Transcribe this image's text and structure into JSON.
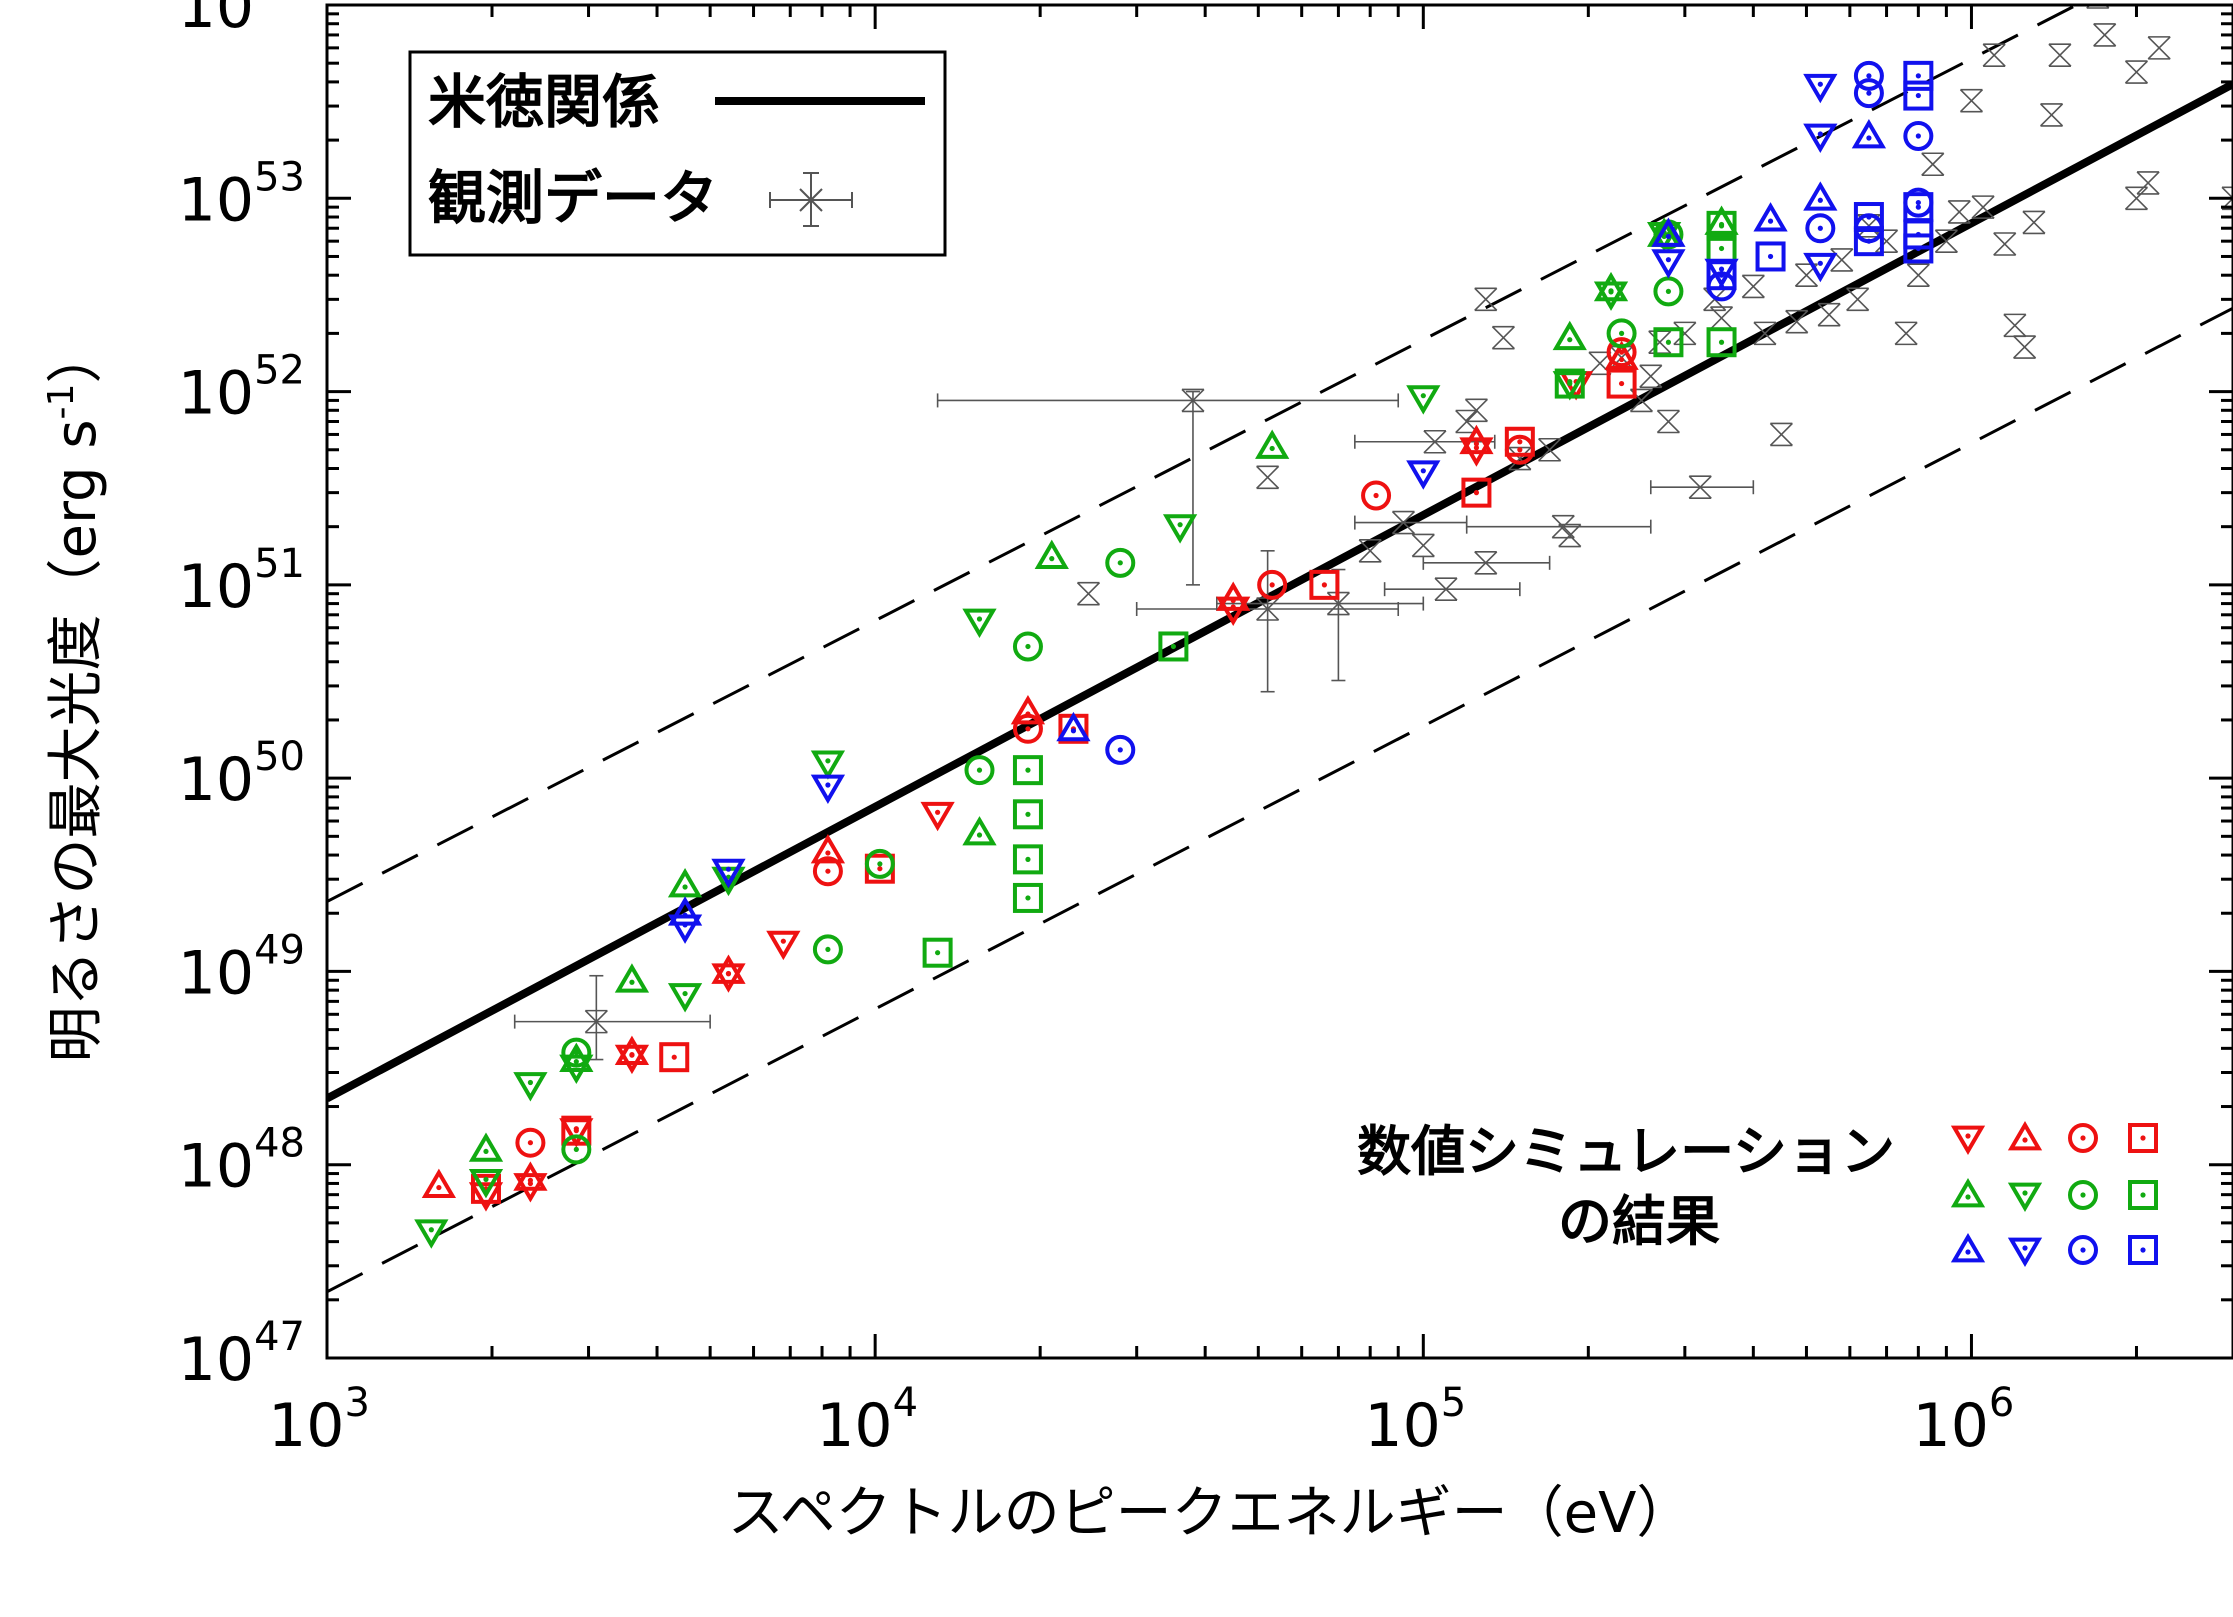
{
  "chart_data": {
    "type": "scatter",
    "x_scale": "log",
    "y_scale": "log",
    "xlim": [
      1000,
      3000000
    ],
    "ylim": [
      1e+47,
      1e+54
    ],
    "x_ticks": [
      {
        "value": 1000,
        "base": "10",
        "exp": "3"
      },
      {
        "value": 10000,
        "base": "10",
        "exp": "4"
      },
      {
        "value": 100000,
        "base": "10",
        "exp": "5"
      },
      {
        "value": 1000000,
        "base": "10",
        "exp": "6"
      }
    ],
    "y_ticks": [
      {
        "value": 1e+47,
        "base": "10",
        "exp": "47"
      },
      {
        "value": 1e+48,
        "base": "10",
        "exp": "48"
      },
      {
        "value": 1e+49,
        "base": "10",
        "exp": "49"
      },
      {
        "value": 1e+50,
        "base": "10",
        "exp": "50"
      },
      {
        "value": 1e+51,
        "base": "10",
        "exp": "51"
      },
      {
        "value": 1e+52,
        "base": "10",
        "exp": "52"
      },
      {
        "value": 1e+53,
        "base": "10",
        "exp": "53"
      },
      {
        "value": 1e+54,
        "base": "10",
        "exp": "54"
      }
    ],
    "xlabel": "スペクトルのピークエネルギー（eV）",
    "ylabel_main": "明るさの最大光度（erg s",
    "ylabel_sup": "-1",
    "ylabel_end": "）",
    "legend": {
      "relation_label": "米徳関係",
      "observed_label": "観測データ"
    },
    "sim_label_line1": "数値シミュレーション",
    "sim_label_line2": "の結果",
    "colors": {
      "red": "#ee1111",
      "green": "#11aa11",
      "blue": "#1111ee",
      "black": "#000000",
      "gray": "#555555"
    },
    "yonetoku_relation": {
      "points": [
        [
          1000,
          2.2e+48
        ],
        [
          3000000,
          3.9e+53
        ]
      ],
      "style": "solid"
    },
    "scatter_bands": [
      {
        "points": [
          [
            1000,
            2.3e+49
          ],
          [
            3000000,
            2.6e+54
          ]
        ],
        "style": "dashed"
      },
      {
        "points": [
          [
            1000,
            2.2e+47
          ],
          [
            3000000,
            2.7e+52
          ]
        ],
        "style": "dashed"
      }
    ],
    "sim_marker_grid": [
      [
        "tri-down-red",
        "tri-up-red",
        "circle-red",
        "square-red"
      ],
      [
        "tri-up-green",
        "tri-down-green",
        "circle-green",
        "square-green"
      ],
      [
        "tri-up-blue",
        "tri-down-blue",
        "circle-blue",
        "square-blue"
      ]
    ],
    "observed": [
      {
        "x": 3100,
        "y": 5.5e+48,
        "xerr": [
          2200,
          5000
        ],
        "yerr": [
          3.5e+48,
          9.5e+48
        ]
      },
      {
        "x": 24500,
        "y": 9e+50
      },
      {
        "x": 38000,
        "y": 9e+51,
        "xerr": [
          13000,
          90000
        ],
        "yerr": [
          1e+51,
          1e+52
        ]
      },
      {
        "x": 52000,
        "y": 3.6e+51
      },
      {
        "x": 52000,
        "y": 7.5e+50,
        "xerr": [
          30000,
          90000
        ],
        "yerr": [
          2.8e+50,
          1.5e+51
        ]
      },
      {
        "x": 70000,
        "y": 8e+50,
        "xerr": [
          42000,
          100000
        ],
        "yerr": [
          3.2e+50,
          1.2e+51
        ]
      },
      {
        "x": 80000,
        "y": 1.5e+51
      },
      {
        "x": 92000,
        "y": 2.1e+51,
        "xerr": [
          75000,
          120000
        ]
      },
      {
        "x": 100000,
        "y": 1.6e+51
      },
      {
        "x": 105000,
        "y": 5.5e+51,
        "xerr": [
          75000,
          135000
        ]
      },
      {
        "x": 110000,
        "y": 9.5e+50,
        "xerr": [
          85000,
          150000
        ]
      },
      {
        "x": 120000,
        "y": 7e+51
      },
      {
        "x": 125000,
        "y": 8e+51
      },
      {
        "x": 130000,
        "y": 3e+52
      },
      {
        "x": 130000,
        "y": 1.3e+51,
        "xerr": [
          100000,
          170000
        ]
      },
      {
        "x": 140000,
        "y": 1.9e+52
      },
      {
        "x": 150000,
        "y": 4.5e+51
      },
      {
        "x": 170000,
        "y": 5e+51
      },
      {
        "x": 180000,
        "y": 2e+51,
        "xerr": [
          120000,
          260000
        ]
      },
      {
        "x": 185000,
        "y": 1.8e+51
      },
      {
        "x": 210000,
        "y": 1.4e+52
      },
      {
        "x": 230000,
        "y": 1.5e+52
      },
      {
        "x": 250000,
        "y": 9e+51
      },
      {
        "x": 260000,
        "y": 1.2e+52
      },
      {
        "x": 270000,
        "y": 1.8e+52
      },
      {
        "x": 280000,
        "y": 7e+51
      },
      {
        "x": 300000,
        "y": 2e+52
      },
      {
        "x": 320000,
        "y": 3.2e+51,
        "xerr": [
          260000,
          400000
        ]
      },
      {
        "x": 340000,
        "y": 3e+52
      },
      {
        "x": 350000,
        "y": 2.4e+52
      },
      {
        "x": 400000,
        "y": 3.5e+52
      },
      {
        "x": 420000,
        "y": 2e+52
      },
      {
        "x": 450000,
        "y": 6e+51
      },
      {
        "x": 480000,
        "y": 2.3e+52
      },
      {
        "x": 500000,
        "y": 4e+52
      },
      {
        "x": 550000,
        "y": 2.5e+52
      },
      {
        "x": 580000,
        "y": 4.8e+52
      },
      {
        "x": 620000,
        "y": 3e+52
      },
      {
        "x": 650000,
        "y": 7.2e+52
      },
      {
        "x": 700000,
        "y": 6e+52
      },
      {
        "x": 760000,
        "y": 2e+52
      },
      {
        "x": 800000,
        "y": 4e+52
      },
      {
        "x": 850000,
        "y": 1.5e+53
      },
      {
        "x": 900000,
        "y": 6e+52
      },
      {
        "x": 950000,
        "y": 8.5e+52
      },
      {
        "x": 1000000,
        "y": 3.2e+53
      },
      {
        "x": 1050000,
        "y": 9e+52
      },
      {
        "x": 1100000,
        "y": 5.5e+53
      },
      {
        "x": 1150000,
        "y": 5.8e+52
      },
      {
        "x": 1200000,
        "y": 2.2e+52
      },
      {
        "x": 1250000,
        "y": 1.7e+52
      },
      {
        "x": 1300000,
        "y": 7.5e+52
      },
      {
        "x": 1400000,
        "y": 2.7e+53
      },
      {
        "x": 1450000,
        "y": 5.5e+53
      },
      {
        "x": 1700000,
        "y": 1.1e+54
      },
      {
        "x": 1750000,
        "y": 7e+53
      },
      {
        "x": 2000000,
        "y": 4.5e+53
      },
      {
        "x": 2000000,
        "y": 1e+53
      },
      {
        "x": 2100000,
        "y": 1.2e+53
      },
      {
        "x": 2200000,
        "y": 6e+53
      },
      {
        "x": 3000000,
        "y": 1e+53
      }
    ],
    "simulations": [
      {
        "shape": "tri-down",
        "color": "red",
        "points": [
          [
            1950,
            7e+47
          ],
          [
            2350,
            7.8e+47
          ],
          [
            2850,
            1.5e+48
          ],
          [
            3600,
            3.6e+48
          ],
          [
            5400,
            9.5e+48
          ],
          [
            6800,
            1.4e+49
          ],
          [
            13000,
            6.5e+49
          ],
          [
            45000,
            7.5e+50
          ],
          [
            125000,
            5e+51
          ],
          [
            190000,
            1.1e+52
          ]
        ]
      },
      {
        "shape": "tri-up",
        "color": "red",
        "points": [
          [
            1600,
            7.8e+47
          ],
          [
            2350,
            8.5e+47
          ],
          [
            3600,
            3.8e+48
          ],
          [
            5400,
            1e+49
          ],
          [
            8200,
            4.2e+49
          ],
          [
            19000,
            2.2e+50
          ],
          [
            45000,
            8.5e+50
          ],
          [
            125000,
            5.5e+51
          ],
          [
            230000,
            1.5e+52
          ]
        ]
      },
      {
        "shape": "circle",
        "color": "red",
        "points": [
          [
            2350,
            1.3e+48
          ],
          [
            8200,
            3.3e+49
          ],
          [
            19000,
            1.8e+50
          ],
          [
            53000,
            1e+51
          ],
          [
            82000,
            2.9e+51
          ],
          [
            150000,
            5e+51
          ],
          [
            230000,
            1.6e+52
          ]
        ]
      },
      {
        "shape": "square",
        "color": "red",
        "points": [
          [
            1950,
            7.5e+47
          ],
          [
            2850,
            1.5e+48
          ],
          [
            4300,
            3.6e+48
          ],
          [
            10200,
            3.4e+49
          ],
          [
            23000,
            1.8e+50
          ],
          [
            66000,
            1e+51
          ],
          [
            125000,
            3e+51
          ],
          [
            150000,
            5.5e+51
          ],
          [
            230000,
            1.1e+52
          ]
        ]
      },
      {
        "shape": "tri-up",
        "color": "green",
        "points": [
          [
            1950,
            1.2e+48
          ],
          [
            2850,
            3.5e+48
          ],
          [
            3600,
            9e+48
          ],
          [
            4500,
            2.8e+49
          ],
          [
            15500,
            5.2e+49
          ],
          [
            21000,
            1.4e+51
          ],
          [
            53000,
            5.2e+51
          ],
          [
            185000,
            1.9e+52
          ],
          [
            220000,
            3.4e+52
          ],
          [
            275000,
            6.5e+52
          ],
          [
            350000,
            7.5e+52
          ]
        ]
      },
      {
        "shape": "tri-down",
        "color": "green",
        "points": [
          [
            1550,
            4.5e+47
          ],
          [
            1950,
            8.2e+47
          ],
          [
            2350,
            2.6e+48
          ],
          [
            2850,
            3.2e+48
          ],
          [
            4500,
            7.5e+48
          ],
          [
            5400,
            3e+49
          ],
          [
            8200,
            1.2e+50
          ],
          [
            15500,
            6.5e+50
          ],
          [
            36000,
            2e+51
          ],
          [
            100000,
            9.3e+51
          ],
          [
            185000,
            1.1e+52
          ],
          [
            220000,
            3.2e+52
          ],
          [
            275000,
            6.5e+52
          ]
        ]
      },
      {
        "shape": "circle",
        "color": "green",
        "points": [
          [
            2850,
            3.8e+48
          ],
          [
            2850,
            1.2e+48
          ],
          [
            8200,
            1.3e+49
          ],
          [
            10200,
            3.6e+49
          ],
          [
            15500,
            1.1e+50
          ],
          [
            19000,
            4.8e+50
          ],
          [
            28000,
            1.3e+51
          ],
          [
            230000,
            2e+52
          ],
          [
            280000,
            6.5e+52
          ],
          [
            280000,
            3.3e+52
          ]
        ]
      },
      {
        "shape": "square",
        "color": "green",
        "points": [
          [
            13000,
            1.25e+49
          ],
          [
            19000,
            2.4e+49
          ],
          [
            19000,
            3.8e+49
          ],
          [
            19000,
            6.5e+49
          ],
          [
            19000,
            1.1e+50
          ],
          [
            35000,
            4.8e+50
          ],
          [
            185000,
            1.1e+52
          ],
          [
            280000,
            1.8e+52
          ],
          [
            350000,
            1.8e+52
          ],
          [
            350000,
            5.5e+52
          ],
          [
            350000,
            7.2e+52
          ]
        ]
      },
      {
        "shape": "tri-up",
        "color": "blue",
        "points": [
          [
            4500,
            2e+49
          ],
          [
            23000,
            1.8e+50
          ],
          [
            280000,
            6.5e+52
          ],
          [
            430000,
            7.8e+52
          ],
          [
            530000,
            1e+53
          ],
          [
            650000,
            2.1e+53
          ]
        ]
      },
      {
        "shape": "tri-down",
        "color": "blue",
        "points": [
          [
            4500,
            1.7e+49
          ],
          [
            5400,
            3.3e+49
          ],
          [
            8200,
            9e+49
          ],
          [
            100000,
            3.8e+51
          ],
          [
            280000,
            4.7e+52
          ],
          [
            350000,
            4.2e+52
          ],
          [
            530000,
            2.1e+53
          ],
          [
            530000,
            3.8e+53
          ],
          [
            530000,
            4.5e+52
          ]
        ]
      },
      {
        "shape": "circle",
        "color": "blue",
        "points": [
          [
            28000,
            1.4e+50
          ],
          [
            350000,
            3.5e+52
          ],
          [
            530000,
            7e+52
          ],
          [
            650000,
            3.5e+53
          ],
          [
            650000,
            4.3e+53
          ],
          [
            650000,
            7e+52
          ],
          [
            800000,
            2.1e+53
          ],
          [
            800000,
            9.5e+52
          ]
        ]
      },
      {
        "shape": "square",
        "color": "blue",
        "points": [
          [
            350000,
            4e+52
          ],
          [
            430000,
            5e+52
          ],
          [
            650000,
            8e+52
          ],
          [
            650000,
            6e+52
          ],
          [
            800000,
            3.4e+53
          ],
          [
            800000,
            4.3e+53
          ],
          [
            800000,
            9e+52
          ],
          [
            800000,
            6.5e+52
          ],
          [
            800000,
            5.5e+52
          ]
        ]
      }
    ]
  }
}
